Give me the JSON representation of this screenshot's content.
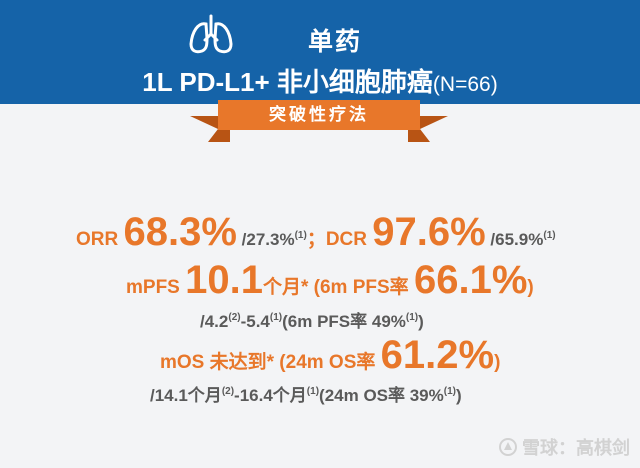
{
  "header": {
    "title_line1": "单药",
    "title_main": "1L PD-L1+ 非小细胞肺癌",
    "title_n": "(N=66)",
    "icon": "lungs-icon",
    "background_color": "#1563a8"
  },
  "ribbon": {
    "label": "突破性疗法",
    "color": "#e8772a"
  },
  "metrics": {
    "orr_label": "ORR ",
    "orr_value": "68.3%",
    "orr_compare": " /27.3%",
    "ref1": "(1)",
    "sep": "；",
    "dcr_label": "DCR ",
    "dcr_value": "97.6%",
    "dcr_compare": " /65.9%",
    "mpfs_label": "mPFS ",
    "mpfs_value": "10.1",
    "mpfs_unit": "个月* (6m PFS率 ",
    "pfs6m_value": "66.1%",
    "close_paren": ")",
    "pfs_compare_a": "/4.2",
    "ref2": "(2)",
    "pfs_compare_b": "-5.4",
    "pfs_compare_c": "(6m PFS率 49%",
    "mos_label": "mOS 未达到* (24m OS率 ",
    "os24m_value": "61.2%",
    "os_compare_a": "/14.1个月",
    "os_compare_b": "-16.4个月",
    "os_compare_c": "(24m OS率 39%"
  },
  "watermark": {
    "text": "雪球：高棋剑",
    "icon": "snowball-logo-icon"
  }
}
